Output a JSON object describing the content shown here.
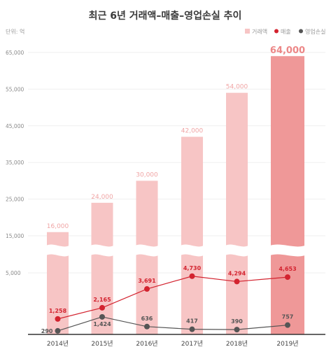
{
  "colors": {
    "bar": "#f7c5c5",
    "bar_highlight": "#ef9898",
    "bar_label": "#f0a5a5",
    "bar_label_highlight": "#ec8787",
    "revenue": "#d3232f",
    "loss": "#555555",
    "axis": "#333333",
    "grid": "#efefef"
  },
  "chart_data": {
    "type": "bar",
    "title": "최근 6년 거래액–매출–영업손실 추이",
    "unit": "단위: 억",
    "categories": [
      "2014년",
      "2015년",
      "2016년",
      "2017년",
      "2018년",
      "2019년"
    ],
    "series": [
      {
        "name": "거래액",
        "type": "bar",
        "values": [
          16000,
          24000,
          30000,
          42000,
          54000,
          64000
        ],
        "labels": [
          "16,000",
          "24,000",
          "30,000",
          "42,000",
          "54,000",
          "64,000"
        ]
      },
      {
        "name": "매출",
        "type": "line",
        "values": [
          1258,
          2165,
          3691,
          4730,
          4294,
          4653
        ],
        "labels": [
          "1,258",
          "2,165",
          "3,691",
          "4,730",
          "4,294",
          "4,653"
        ]
      },
      {
        "name": "영업손실",
        "type": "line",
        "values": [
          290,
          1424,
          636,
          417,
          390,
          757
        ],
        "labels": [
          "290",
          "1,424",
          "636",
          "417",
          "390",
          "757"
        ]
      }
    ],
    "y_ticks": [
      5000,
      15000,
      25000,
      35000,
      45000,
      55000,
      65000
    ],
    "y_tick_labels": [
      "5,000",
      "15,000",
      "25,000",
      "35,000",
      "45,000",
      "55,000",
      "65,000"
    ],
    "ylim": [
      0,
      65000
    ],
    "axis_break": [
      5000,
      15000
    ],
    "legend": "top-right",
    "grid": true
  }
}
